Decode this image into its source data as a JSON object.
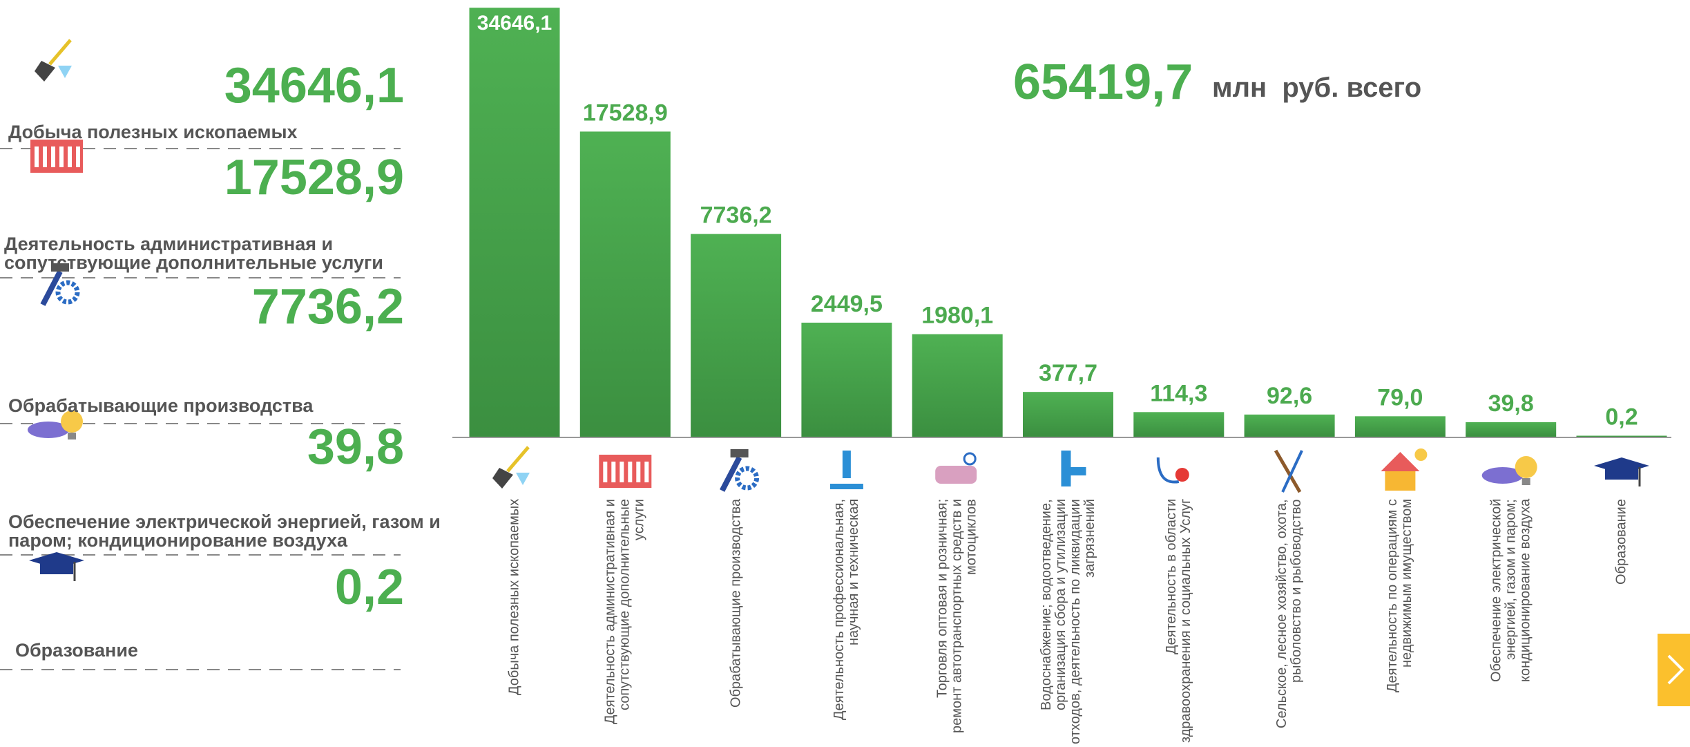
{
  "summary": [
    {
      "value": "34646,1",
      "label": "Добыча полезных ископаемых"
    },
    {
      "value": "17528,9",
      "label": "Деятельность административная и сопутствующие дополнительные услуги"
    },
    {
      "value": "7736,2",
      "label": "Обрабатывающие производства"
    },
    {
      "value": "39,8",
      "label": "Обеспечение электрической энергией, газом и паром; кондиционирование воздуха"
    },
    {
      "value": "0,2",
      "label": "Образование"
    }
  ],
  "chart_data": {
    "type": "bar",
    "total": "65419,7",
    "total_unit": "млн  руб. всего",
    "categories": [
      "Добыча полезных ископаемых",
      "Деятельность административная и сопутствующие дополнительные услуги",
      "Обрабатывающие производства",
      "Деятельность профессиональная, научная и техническая",
      "Торговля оптовая и розничная; ремонт автотранспортных средств и мотоциклов",
      "Водоснабжение; водоотведение, организация сбора и утилизации отходов, деятельность по ликвидации загрязнений",
      "Деятельность в области здравоохранения и социальных Услуг",
      "Сельское, лесное хозяйство, охота, рыболовство и рыбоводство",
      "Деятельность по операциям с недвижимым имуществом",
      "Обеспечение электрической энергией, газом и паром; кондиционирование воздуха",
      "Образование"
    ],
    "values": [
      34646.1,
      17528.9,
      7736.2,
      2449.5,
      1980.1,
      377.7,
      114.3,
      92.6,
      79.0,
      39.8,
      0.2
    ],
    "value_labels": [
      "34646,1",
      "17528,9",
      "7736,2",
      "2449,5",
      "1980,1",
      "377,7",
      "114,3",
      "92,6",
      "79,0",
      "39,8",
      "0,2"
    ],
    "color": "#4caf50",
    "label_color": "#4caa4f",
    "scale": "sqrt",
    "ylim": [
      0,
      35000
    ]
  }
}
